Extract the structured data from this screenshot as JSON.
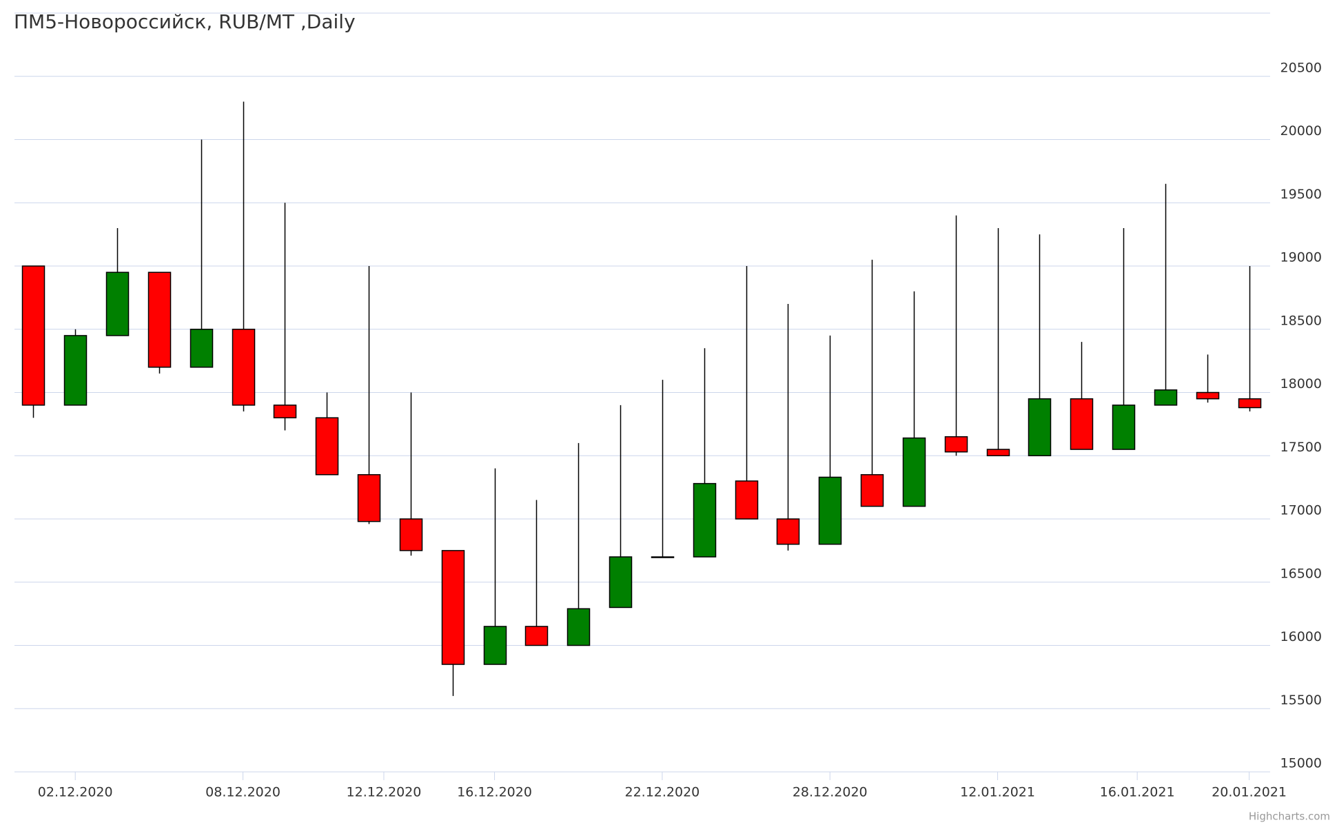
{
  "chart_data": {
    "type": "candlestick",
    "title": "ПМ5-Новороссийск, RUB/MT ,Daily",
    "credits": "Highcharts.com",
    "x": [
      0,
      1,
      2,
      3,
      4,
      5,
      6,
      7,
      8,
      9,
      10,
      11,
      12,
      13,
      14,
      15,
      16,
      17,
      18,
      19,
      20,
      21,
      22,
      23,
      24,
      25,
      26,
      27,
      28,
      29
    ],
    "open": [
      19000,
      17900,
      18450,
      18950,
      18200,
      18500,
      17900,
      17800,
      17350,
      17000,
      16750,
      15850,
      16150,
      16000,
      16300,
      16700,
      16700,
      17300,
      17000,
      16800,
      17350,
      17100,
      17650,
      17550,
      17500,
      17950,
      17550,
      17900,
      18000,
      17950
    ],
    "high": [
      19000,
      18500,
      19300,
      18950,
      20000,
      20300,
      19500,
      18000,
      19000,
      18000,
      16750,
      17400,
      17150,
      17600,
      17900,
      18100,
      18350,
      19000,
      18700,
      18450,
      19050,
      18800,
      19400,
      19300,
      19250,
      18400,
      19300,
      19650,
      18300,
      19000
    ],
    "low": [
      17800,
      17900,
      18450,
      18150,
      18200,
      17850,
      17700,
      17350,
      16960,
      16710,
      15600,
      15850,
      16000,
      16000,
      16300,
      16700,
      16700,
      17000,
      16750,
      16800,
      17100,
      17100,
      17500,
      17500,
      17500,
      17550,
      17550,
      17900,
      17920,
      17850
    ],
    "close": [
      17900,
      18450,
      18950,
      18200,
      18500,
      17900,
      17800,
      17350,
      16980,
      16750,
      15850,
      16150,
      16000,
      16290,
      16700,
      16700,
      17280,
      17000,
      16800,
      17330,
      17100,
      17640,
      17530,
      17500,
      17950,
      17550,
      17900,
      18020,
      17950,
      17880
    ],
    "up_color": "#008000",
    "down_color": "#ff0000",
    "xlim": [
      -0.45,
      29.5
    ],
    "xticks": [
      {
        "value": 1,
        "label": "02.12.2020"
      },
      {
        "value": 5,
        "label": "08.12.2020"
      },
      {
        "value": 8.36,
        "label": "12.12.2020"
      },
      {
        "value": 11,
        "label": "16.12.2020"
      },
      {
        "value": 15,
        "label": "22.12.2020"
      },
      {
        "value": 19,
        "label": "28.12.2020"
      },
      {
        "value": 23,
        "label": "12.01.2021"
      },
      {
        "value": 26.33,
        "label": "16.01.2021"
      },
      {
        "value": 29,
        "label": "20.01.2021"
      }
    ],
    "ylim": [
      15000,
      21000
    ],
    "yticks": [
      15000,
      15500,
      16000,
      16500,
      17000,
      17500,
      18000,
      18500,
      19000,
      19500,
      20000,
      20500
    ],
    "grid": true
  }
}
